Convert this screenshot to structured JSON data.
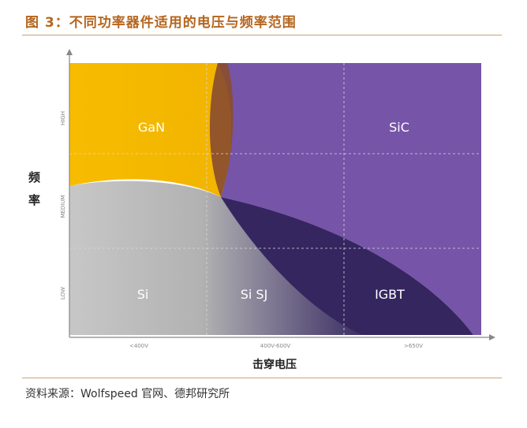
{
  "title": "图 3：不同功率器件适用的电压与频率范围",
  "source": "资料来源：Wolfspeed 官网、德邦研究所",
  "axes": {
    "y_label_line1": "频",
    "y_label_line2": "率",
    "x_label": "击穿电压",
    "y_ticks": [
      "HIGH",
      "MEDIUM",
      "LOW"
    ],
    "x_ticks": [
      "<400V",
      "400V-600V",
      ">650V"
    ]
  },
  "regions": {
    "gan": "GaN",
    "sic": "SiC",
    "si": "Si",
    "sisj": "Si SJ",
    "igbt": "IGBT"
  },
  "colors": {
    "title": "#b5651d",
    "gan": "#f5b800",
    "sic": "#7654a8",
    "si": "#c4c4c4",
    "igbt": "#352660",
    "overlap": "#8a4e2e",
    "axis": "#888888",
    "rule": "#c8a37a"
  }
}
